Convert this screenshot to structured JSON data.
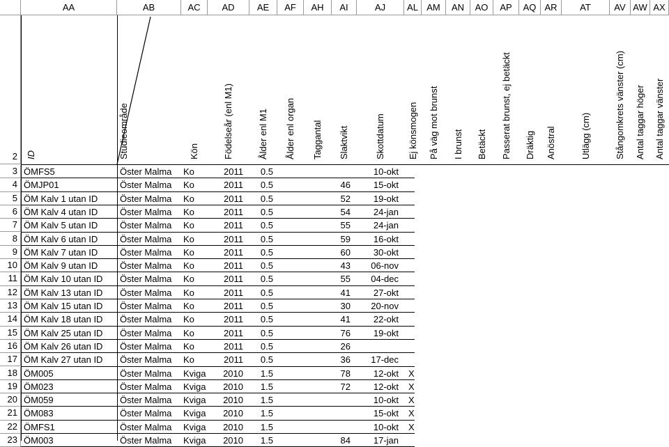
{
  "col_headers": [
    "AA",
    "AB",
    "AC",
    "AD",
    "AE",
    "AF",
    "AH",
    "AI",
    "AJ",
    "AL",
    "AM",
    "AN",
    "AO",
    "AP",
    "AQ",
    "AR",
    "AT",
    "AV",
    "AW",
    "AX"
  ],
  "header_row_num": "2",
  "header_labels": {
    "id": "ID",
    "studieomrade": "Studieområde",
    "kon": "Kön",
    "fodelsear": "Födelseår (enl M1)",
    "alder_m1": "Ålder enl M1",
    "alder_organ": "Ålder enl organ",
    "taggantal": "Taggantal",
    "slaktvikt": "Slaktvikt",
    "skottdatum": "Skottdatum",
    "ej_konsmogen": "Ej könsmogen",
    "pa_vag": "På väg mot brunst",
    "i_brunst": "I brunst",
    "betackt": "Betäckt",
    "passerat": "Passerat brunst, ej betäckt",
    "draktig": "Dräktig",
    "anostral": "Anöstral",
    "utlagg": "Utlägg (cm)",
    "stangomkrets": "Stångomkrets vänster (cm)",
    "taggar_hoger": "Antal taggar höger",
    "taggar_vanster": "Antal taggar vänster"
  },
  "rows": [
    {
      "n": "3",
      "id": "ÖMFS5",
      "area": "Öster Malma",
      "sex": "Ko",
      "year": "2011",
      "age": "0.5",
      "weight": "",
      "date": "10-okt",
      "x": ""
    },
    {
      "n": "4",
      "id": "ÖMJP01",
      "area": "Öster Malma",
      "sex": "Ko",
      "year": "2011",
      "age": "0.5",
      "weight": "46",
      "date": "15-okt",
      "x": ""
    },
    {
      "n": "5",
      "id": "ÖM Kalv 1 utan ID",
      "area": "Öster Malma",
      "sex": "Ko",
      "year": "2011",
      "age": "0.5",
      "weight": "52",
      "date": "19-okt",
      "x": ""
    },
    {
      "n": "6",
      "id": "ÖM Kalv 4 utan ID",
      "area": "Öster Malma",
      "sex": "Ko",
      "year": "2011",
      "age": "0.5",
      "weight": "54",
      "date": "24-jan",
      "x": ""
    },
    {
      "n": "7",
      "id": "ÖM Kalv 5 utan ID",
      "area": "Öster Malma",
      "sex": "Ko",
      "year": "2011",
      "age": "0.5",
      "weight": "55",
      "date": "24-jan",
      "x": ""
    },
    {
      "n": "8",
      "id": "ÖM Kalv 6 utan ID",
      "area": "Öster Malma",
      "sex": "Ko",
      "year": "2011",
      "age": "0.5",
      "weight": "59",
      "date": "16-okt",
      "x": ""
    },
    {
      "n": "9",
      "id": "ÖM Kalv 7 utan ID",
      "area": "Öster Malma",
      "sex": "Ko",
      "year": "2011",
      "age": "0.5",
      "weight": "60",
      "date": "30-okt",
      "x": ""
    },
    {
      "n": "10",
      "id": "ÖM Kalv 9 utan ID",
      "area": "Öster Malma",
      "sex": "Ko",
      "year": "2011",
      "age": "0.5",
      "weight": "43",
      "date": "06-nov",
      "x": ""
    },
    {
      "n": "11",
      "id": "ÖM Kalv 10 utan ID",
      "area": "Öster Malma",
      "sex": "Ko",
      "year": "2011",
      "age": "0.5",
      "weight": "55",
      "date": "04-dec",
      "x": ""
    },
    {
      "n": "12",
      "id": "ÖM Kalv 13 utan ID",
      "area": "Öster Malma",
      "sex": "Ko",
      "year": "2011",
      "age": "0.5",
      "weight": "41",
      "date": "27-okt",
      "x": ""
    },
    {
      "n": "13",
      "id": "ÖM Kalv 15 utan ID",
      "area": "Öster Malma",
      "sex": "Ko",
      "year": "2011",
      "age": "0.5",
      "weight": "30",
      "date": "20-nov",
      "x": ""
    },
    {
      "n": "14",
      "id": "ÖM Kalv 18 utan ID",
      "area": "Öster Malma",
      "sex": "Ko",
      "year": "2011",
      "age": "0.5",
      "weight": "41",
      "date": "22-okt",
      "x": ""
    },
    {
      "n": "15",
      "id": "ÖM Kalv 25 utan ID",
      "area": "Öster Malma",
      "sex": "Ko",
      "year": "2011",
      "age": "0.5",
      "weight": "76",
      "date": "19-okt",
      "x": ""
    },
    {
      "n": "16",
      "id": "ÖM Kalv 26 utan ID",
      "area": "Öster Malma",
      "sex": "Ko",
      "year": "2011",
      "age": "0.5",
      "weight": "26",
      "date": "",
      "x": ""
    },
    {
      "n": "17",
      "id": "ÖM Kalv 27 utan ID",
      "area": "Öster Malma",
      "sex": "Ko",
      "year": "2011",
      "age": "0.5",
      "weight": "36",
      "date": "17-dec",
      "x": ""
    },
    {
      "n": "18",
      "id": "ÖM005",
      "area": "Öster Malma",
      "sex": "Kviga",
      "year": "2010",
      "age": "1.5",
      "weight": "78",
      "date": "12-okt",
      "x": "X"
    },
    {
      "n": "19",
      "id": "ÖM023",
      "area": "Öster Malma",
      "sex": "Kviga",
      "year": "2010",
      "age": "1.5",
      "weight": "72",
      "date": "12-okt",
      "x": "X"
    },
    {
      "n": "20",
      "id": "ÖM059",
      "area": "Öster Malma",
      "sex": "Kviga",
      "year": "2010",
      "age": "1.5",
      "weight": "",
      "date": "10-okt",
      "x": "X"
    },
    {
      "n": "21",
      "id": "ÖM083",
      "area": "Öster Malma",
      "sex": "Kviga",
      "year": "2010",
      "age": "1.5",
      "weight": "",
      "date": "15-okt",
      "x": "X"
    },
    {
      "n": "22",
      "id": "ÖMFS1",
      "area": "Öster Malma",
      "sex": "Kviga",
      "year": "2010",
      "age": "1.5",
      "weight": "",
      "date": "10-okt",
      "x": "X"
    },
    {
      "n": "23",
      "id": "ÖM003",
      "area": "Öster Malma",
      "sex": "Kviga",
      "year": "2010",
      "age": "1.5",
      "weight": "84",
      "date": "17-jan",
      "x": ""
    }
  ]
}
